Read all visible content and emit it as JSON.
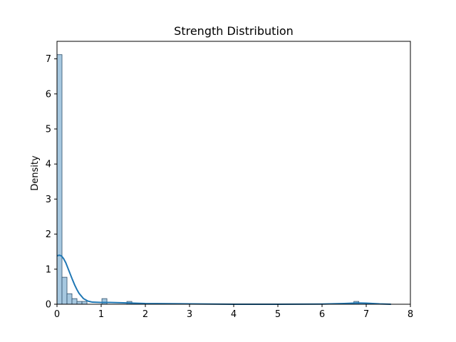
{
  "chart_data": {
    "type": "histogram",
    "title": "Strength Distribution",
    "xlabel": "",
    "ylabel": "Density",
    "xlim": [
      0,
      8
    ],
    "ylim": [
      0,
      7.5
    ],
    "xticks": [
      0,
      1,
      2,
      3,
      4,
      5,
      6,
      7,
      8
    ],
    "yticks": [
      0,
      1,
      2,
      3,
      4,
      5,
      6,
      7
    ],
    "bin_width": 0.113,
    "bars": [
      {
        "x0": 0.0,
        "x1": 0.113,
        "density": 7.12
      },
      {
        "x0": 0.113,
        "x1": 0.226,
        "density": 0.77
      },
      {
        "x0": 0.226,
        "x1": 0.339,
        "density": 0.3
      },
      {
        "x0": 0.339,
        "x1": 0.452,
        "density": 0.16
      },
      {
        "x0": 0.452,
        "x1": 0.565,
        "density": 0.08
      },
      {
        "x0": 0.565,
        "x1": 0.678,
        "density": 0.08
      },
      {
        "x0": 1.017,
        "x1": 1.13,
        "density": 0.16
      },
      {
        "x0": 1.582,
        "x1": 1.695,
        "density": 0.08
      },
      {
        "x0": 6.72,
        "x1": 6.833,
        "density": 0.08
      }
    ],
    "kde": {
      "x": [
        0,
        0.05,
        0.1,
        0.15,
        0.2,
        0.25,
        0.3,
        0.35,
        0.4,
        0.45,
        0.5,
        0.6,
        0.7,
        0.8,
        1.0,
        1.2,
        1.5,
        2.0,
        3.0,
        4.0,
        5.0,
        6.0,
        6.5,
        6.8,
        7.0,
        7.3,
        7.56
      ],
      "y": [
        1.38,
        1.4,
        1.38,
        1.3,
        1.18,
        1.02,
        0.86,
        0.7,
        0.55,
        0.42,
        0.31,
        0.16,
        0.09,
        0.06,
        0.05,
        0.05,
        0.04,
        0.02,
        0.01,
        0.0,
        0.0,
        0.005,
        0.02,
        0.035,
        0.03,
        0.01,
        0.0
      ]
    },
    "colors": {
      "bar_fill": "#a6c8e0",
      "bar_edge": "#2f4f6a",
      "kde_line": "#1f77b4"
    },
    "grid": false
  }
}
